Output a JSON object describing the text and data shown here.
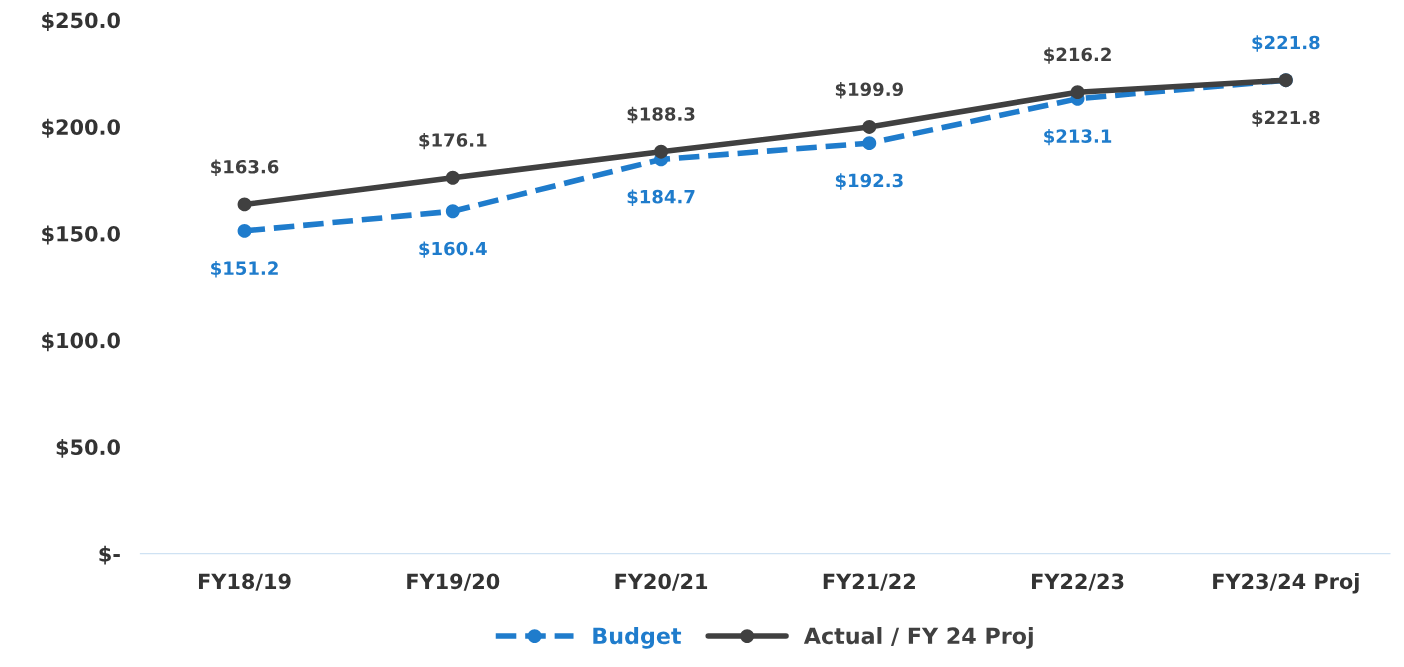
{
  "chart_data": {
    "type": "line",
    "categories": [
      "FY18/19",
      "FY19/20",
      "FY20/21",
      "FY21/22",
      "FY22/23",
      "FY23/24 Proj"
    ],
    "series": [
      {
        "name": "Budget",
        "color": "#1f7ccc",
        "line_style": "dashed",
        "values": [
          151.2,
          160.4,
          184.7,
          192.3,
          213.1,
          221.8
        ],
        "value_labels": [
          "$151.2",
          "$160.4",
          "$184.7",
          "$192.3",
          "$213.1",
          "$221.8"
        ]
      },
      {
        "name": "Actual / FY 24 Proj",
        "color": "#404040",
        "line_style": "solid",
        "values": [
          163.6,
          176.1,
          188.3,
          199.9,
          216.2,
          221.8
        ],
        "value_labels": [
          "$163.6",
          "$176.1",
          "$188.3",
          "$199.9",
          "$216.2",
          "$221.8"
        ]
      }
    ],
    "ylim": [
      0,
      250
    ],
    "yticks": [
      {
        "value": 0,
        "label": "$-"
      },
      {
        "value": 50,
        "label": "$50.0"
      },
      {
        "value": 100,
        "label": "$100.0"
      },
      {
        "value": 150,
        "label": "$150.0"
      },
      {
        "value": 200,
        "label": "$200.0"
      },
      {
        "value": 250,
        "label": "$250.0"
      }
    ],
    "marker": "circle",
    "grid": false,
    "legend": "bottom"
  }
}
